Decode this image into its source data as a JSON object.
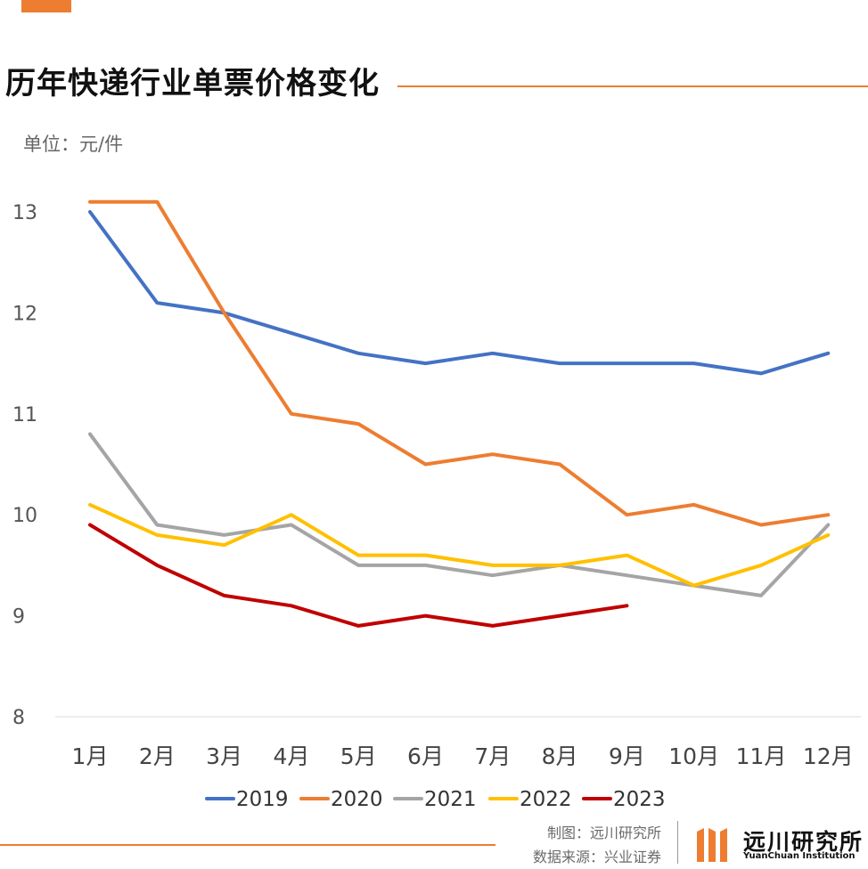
{
  "header": {
    "title": "历年快递行业单票价格变化",
    "unit": "单位：元/件"
  },
  "footer": {
    "maker": "制图：远川研究所",
    "source": "数据来源：兴业证券",
    "logo_name": "远川研究所",
    "logo_sub": "YuanChuan Institution"
  },
  "colors": {
    "accent": "#ED7D31"
  },
  "chart_data": {
    "type": "line",
    "title": "历年快递行业单票价格变化",
    "ylabel": "单位：元/件",
    "xlabel": "",
    "categories": [
      "1月",
      "2月",
      "3月",
      "4月",
      "5月",
      "6月",
      "7月",
      "8月",
      "9月",
      "10月",
      "11月",
      "12月"
    ],
    "ylim": [
      8,
      13
    ],
    "yticks": [
      8,
      9,
      10,
      11,
      12,
      13
    ],
    "grid": false,
    "legend": "bottom",
    "series": [
      {
        "name": "2019",
        "color": "#4472C4",
        "values": [
          13.0,
          12.1,
          12.0,
          11.8,
          11.6,
          11.5,
          11.6,
          11.5,
          11.5,
          11.5,
          11.4,
          11.6
        ]
      },
      {
        "name": "2020",
        "color": "#ED7D31",
        "values": [
          13.1,
          13.1,
          12.0,
          11.0,
          10.9,
          10.5,
          10.6,
          10.5,
          10.0,
          10.1,
          9.9,
          10.0
        ]
      },
      {
        "name": "2021",
        "color": "#A5A5A5",
        "values": [
          10.8,
          9.9,
          9.8,
          9.9,
          9.5,
          9.5,
          9.4,
          9.5,
          9.4,
          9.3,
          9.2,
          9.9
        ]
      },
      {
        "name": "2022",
        "color": "#FFC000",
        "values": [
          10.1,
          9.8,
          9.7,
          10.0,
          9.6,
          9.6,
          9.5,
          9.5,
          9.6,
          9.3,
          9.5,
          9.8
        ]
      },
      {
        "name": "2023",
        "color": "#C00000",
        "values": [
          9.9,
          9.5,
          9.2,
          9.1,
          8.9,
          9.0,
          8.9,
          9.0,
          9.1,
          null,
          null,
          null
        ]
      }
    ]
  }
}
